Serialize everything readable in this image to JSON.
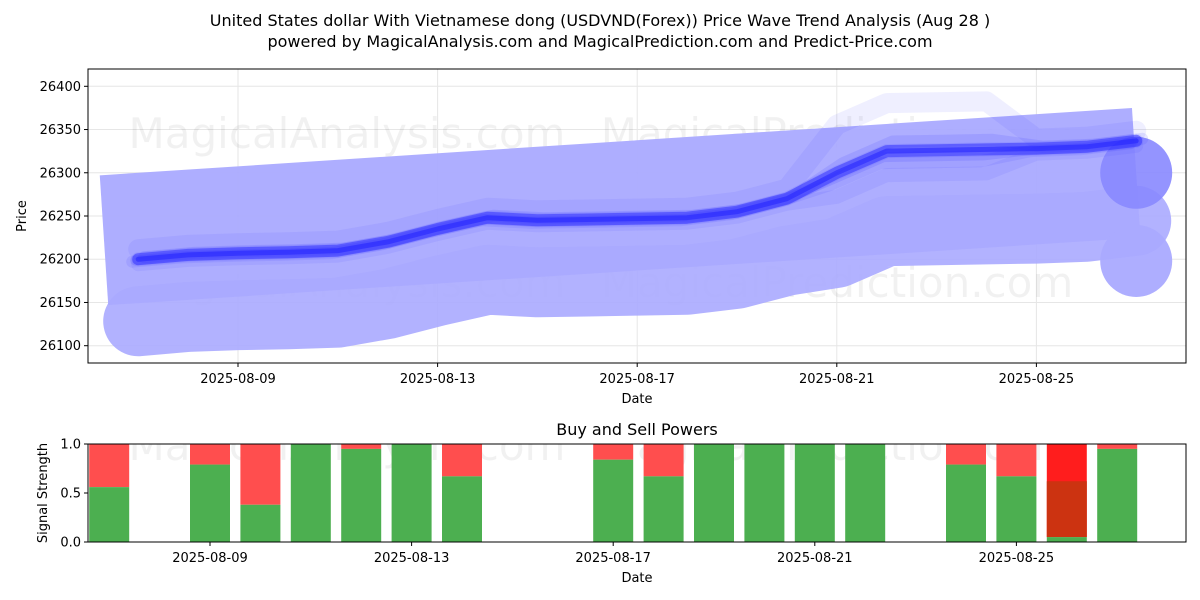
{
  "title_line1": "United States dollar With Vietnamese dong (USDVND(Forex)) Price Wave Trend Analysis (Aug 28 )",
  "title_line2": "powered by MagicalAnalysis.com and MagicalPrediction.com and Predict-Price.com",
  "watermarks": [
    "MagicalAnalysis.com",
    "MagicalPrediction.com"
  ],
  "chart_data": [
    {
      "type": "line",
      "xlabel": "Date",
      "ylabel": "Price",
      "ylim": [
        26080,
        26420
      ],
      "yticks": [
        26100,
        26150,
        26200,
        26250,
        26300,
        26350,
        26400
      ],
      "xticks": [
        "2025-08-09",
        "2025-08-13",
        "2025-08-17",
        "2025-08-21",
        "2025-08-25"
      ],
      "grid": true,
      "colors": {
        "wave": "#3333ff",
        "band": "#aaaaff"
      },
      "series": [
        {
          "values": [
            {
              "x": "2025-08-07",
              "y": 26200
            },
            {
              "x": "2025-08-08",
              "y": 26205
            },
            {
              "x": "2025-08-09",
              "y": 26207
            },
            {
              "x": "2025-08-10",
              "y": 26208
            },
            {
              "x": "2025-08-11",
              "y": 26210
            },
            {
              "x": "2025-08-12",
              "y": 26220
            },
            {
              "x": "2025-08-13",
              "y": 26235
            },
            {
              "x": "2025-08-14",
              "y": 26248
            },
            {
              "x": "2025-08-15",
              "y": 26245
            },
            {
              "x": "2025-08-16",
              "y": 26246
            },
            {
              "x": "2025-08-17",
              "y": 26247
            },
            {
              "x": "2025-08-18",
              "y": 26248
            },
            {
              "x": "2025-08-19",
              "y": 26255
            },
            {
              "x": "2025-08-20",
              "y": 26270
            },
            {
              "x": "2025-08-21",
              "y": 26300
            },
            {
              "x": "2025-08-22",
              "y": 26325
            },
            {
              "x": "2025-08-23",
              "y": 26326
            },
            {
              "x": "2025-08-24",
              "y": 26327
            },
            {
              "x": "2025-08-25",
              "y": 26328
            },
            {
              "x": "2025-08-26",
              "y": 26330
            },
            {
              "x": "2025-08-27",
              "y": 26337
            }
          ]
        }
      ]
    },
    {
      "type": "bar",
      "title": "Buy and Sell Powers",
      "xlabel": "Date",
      "ylabel": "Signal Strength",
      "ylim": [
        0,
        1
      ],
      "yticks": [
        "0.0",
        "0.5",
        "1.0"
      ],
      "xticks": [
        "2025-08-09",
        "2025-08-13",
        "2025-08-17",
        "2025-08-21",
        "2025-08-25"
      ],
      "colors": {
        "buy": "#4caf50",
        "sell": "#ff4444",
        "sell_strong": "#ff1111",
        "mixed": "#cc3311"
      },
      "bars": [
        {
          "date": "2025-08-07",
          "buy": 0.56,
          "sell": 0.44
        },
        {
          "date": "2025-08-09",
          "buy": 0.79,
          "sell": 0.21
        },
        {
          "date": "2025-08-10",
          "buy": 0.38,
          "sell": 0.62
        },
        {
          "date": "2025-08-11",
          "buy": 1.0,
          "sell": 0.0
        },
        {
          "date": "2025-08-12",
          "buy": 0.95,
          "sell": 0.05
        },
        {
          "date": "2025-08-13",
          "buy": 1.0,
          "sell": 0.0
        },
        {
          "date": "2025-08-14",
          "buy": 0.67,
          "sell": 0.33
        },
        {
          "date": "2025-08-17",
          "buy": 0.84,
          "sell": 0.16
        },
        {
          "date": "2025-08-18",
          "buy": 0.67,
          "sell": 0.33
        },
        {
          "date": "2025-08-19",
          "buy": 1.0,
          "sell": 0.0
        },
        {
          "date": "2025-08-20",
          "buy": 1.0,
          "sell": 0.0
        },
        {
          "date": "2025-08-21",
          "buy": 1.0,
          "sell": 0.0
        },
        {
          "date": "2025-08-22",
          "buy": 1.0,
          "sell": 0.0
        },
        {
          "date": "2025-08-24",
          "buy": 0.79,
          "sell": 0.21
        },
        {
          "date": "2025-08-25",
          "buy": 0.67,
          "sell": 0.33
        },
        {
          "date": "2025-08-26",
          "buy": 0.05,
          "sell": 0.95,
          "mixed": 0.62
        },
        {
          "date": "2025-08-27",
          "buy": 0.95,
          "sell": 0.05
        }
      ]
    }
  ]
}
